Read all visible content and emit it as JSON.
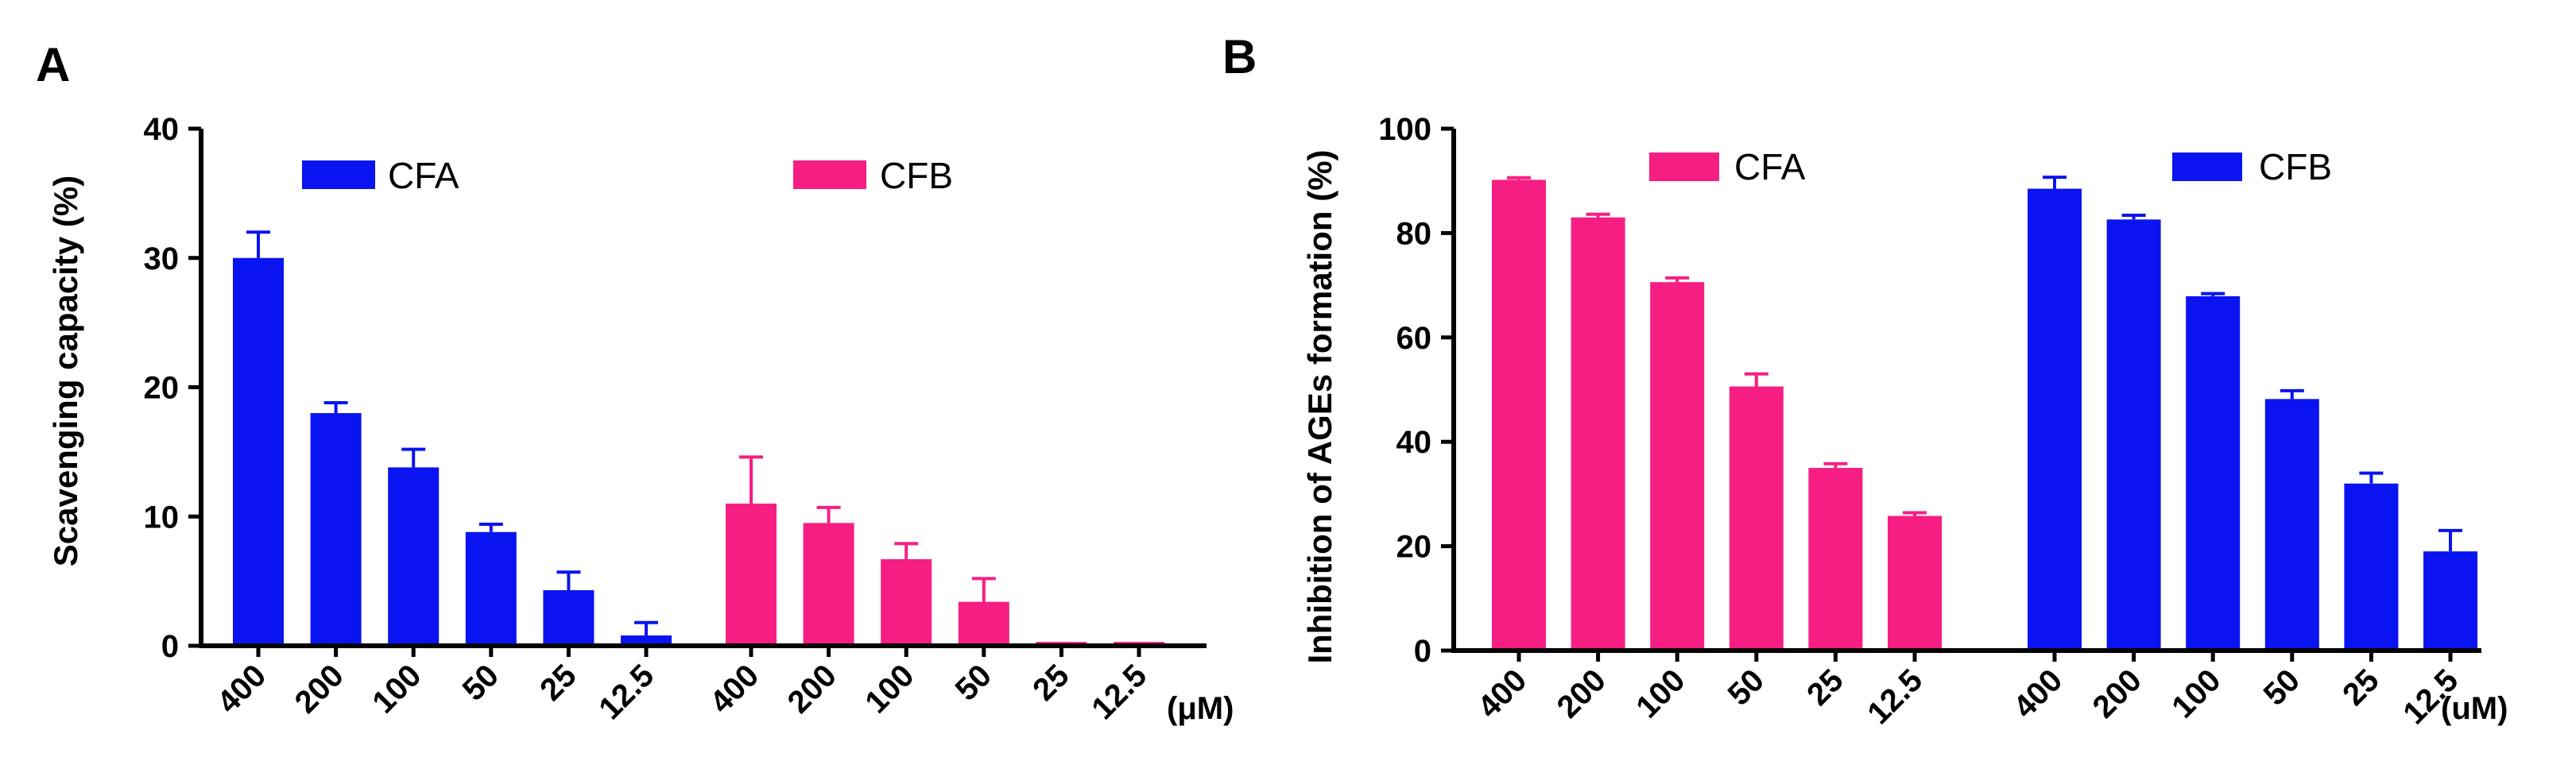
{
  "chart_data": [
    {
      "type": "bar",
      "panel_label": "A",
      "title": "",
      "xlabel": "",
      "ylabel": "Scavenging capacity (%)",
      "unit_label": "(μM)",
      "ylim": [
        0,
        40
      ],
      "yticks": [
        0,
        10,
        20,
        30,
        40
      ],
      "categories": [
        "400",
        "200",
        "100",
        "50",
        "25",
        "12.5"
      ],
      "series": [
        {
          "name": "CFA",
          "color": "#0a14f0",
          "values": [
            30.0,
            18.0,
            13.8,
            8.8,
            4.3,
            0.8
          ],
          "errors": [
            2.0,
            0.8,
            1.4,
            0.6,
            1.4,
            1.0
          ]
        },
        {
          "name": "CFB",
          "color": "#f71e83",
          "values": [
            11.0,
            9.5,
            6.7,
            3.4,
            0.3,
            0.3
          ],
          "errors": [
            3.6,
            1.2,
            1.2,
            1.8,
            0.0,
            0.0
          ]
        }
      ],
      "legend": "top"
    },
    {
      "type": "bar",
      "panel_label": "B",
      "title": "",
      "xlabel": "",
      "ylabel": "Inhibition of AGEs formation (%)",
      "unit_label": "(uM)",
      "ylim": [
        0,
        100
      ],
      "yticks": [
        0,
        20,
        40,
        60,
        80,
        100
      ],
      "categories": [
        "400",
        "200",
        "100",
        "50",
        "25",
        "12.5"
      ],
      "series": [
        {
          "name": "CFA",
          "color": "#f71e83",
          "values": [
            90.2,
            83.0,
            70.6,
            50.6,
            35.0,
            25.8
          ],
          "errors": [
            0.4,
            0.6,
            0.8,
            2.4,
            0.8,
            0.6
          ]
        },
        {
          "name": "CFB",
          "color": "#0a14f0",
          "values": [
            88.5,
            82.6,
            67.9,
            48.2,
            32.0,
            19.0
          ],
          "errors": [
            2.2,
            0.8,
            0.5,
            1.6,
            2.0,
            4.0
          ]
        }
      ],
      "legend": "top"
    }
  ]
}
